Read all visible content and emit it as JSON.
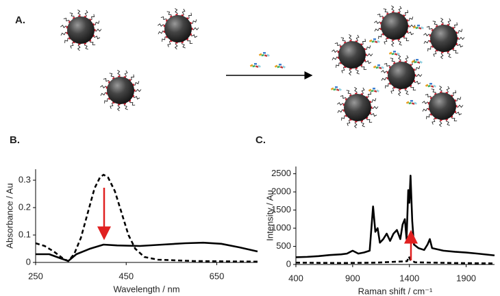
{
  "panel_labels": [
    "A.",
    "B.",
    "C."
  ],
  "chart_data": [
    {
      "type": "line",
      "x_label": "Wavelength / nm",
      "y_label": "Absorbance / Au",
      "xlim": [
        250,
        740
      ],
      "xticks": [
        250,
        450,
        650
      ],
      "ylim": [
        0,
        0.34
      ],
      "yticks": [
        0,
        0.1,
        0.2,
        0.3
      ],
      "series": [
        {
          "color": "#000000",
          "dash": "dashed",
          "x": [
            250,
            270,
            290,
            310,
            322,
            335,
            350,
            365,
            380,
            392,
            400,
            410,
            425,
            440,
            455,
            470,
            490,
            520,
            600,
            740
          ],
          "values": [
            0.07,
            0.06,
            0.04,
            0.015,
            0.005,
            0.03,
            0.09,
            0.18,
            0.27,
            0.31,
            0.32,
            0.31,
            0.26,
            0.18,
            0.1,
            0.05,
            0.02,
            0.01,
            0.005,
            0.003
          ]
        },
        {
          "color": "#000000",
          "dash": "solid",
          "x": [
            250,
            280,
            305,
            322,
            340,
            370,
            400,
            430,
            480,
            530,
            580,
            620,
            660,
            700,
            740
          ],
          "values": [
            0.03,
            0.03,
            0.015,
            0.005,
            0.03,
            0.05,
            0.065,
            0.062,
            0.06,
            0.065,
            0.07,
            0.072,
            0.068,
            0.055,
            0.04
          ]
        }
      ]
    },
    {
      "type": "line",
      "x_label": "Raman shift / cm⁻¹",
      "y_label": "Intensity / Au",
      "xlim": [
        400,
        2150
      ],
      "xticks": [
        400,
        900,
        1400,
        1900
      ],
      "ylim": [
        0,
        2700
      ],
      "yticks": [
        0,
        500,
        1000,
        1500,
        2000,
        2500
      ],
      "series": [
        {
          "color": "#000000",
          "dash": "solid",
          "x": [
            400,
            500,
            600,
            700,
            800,
            850,
            900,
            950,
            1000,
            1050,
            1080,
            1100,
            1120,
            1140,
            1170,
            1200,
            1230,
            1260,
            1290,
            1320,
            1340,
            1360,
            1375,
            1390,
            1400,
            1410,
            1425,
            1440,
            1480,
            1530,
            1560,
            1580,
            1600,
            1700,
            1800,
            1900,
            2000,
            2150
          ],
          "values": [
            200,
            210,
            230,
            260,
            280,
            300,
            380,
            300,
            330,
            380,
            1600,
            900,
            1000,
            600,
            700,
            850,
            650,
            850,
            950,
            700,
            1100,
            1250,
            700,
            2050,
            1700,
            2450,
            1200,
            550,
            450,
            400,
            550,
            700,
            450,
            380,
            350,
            330,
            300,
            250
          ]
        },
        {
          "color": "#000000",
          "dash": "dashed",
          "x": [
            400,
            800,
            1100,
            1380,
            1395,
            1410,
            1450,
            1800,
            2150
          ],
          "values": [
            50,
            40,
            50,
            90,
            220,
            120,
            60,
            40,
            30
          ]
        }
      ]
    }
  ]
}
